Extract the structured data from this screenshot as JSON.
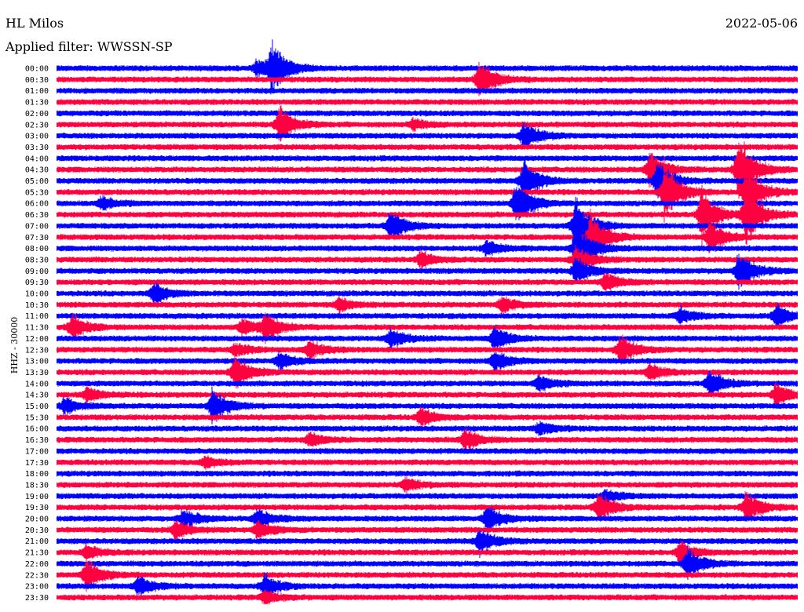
{
  "header": {
    "station": "HL Milos",
    "date": "2022-05-06",
    "filter": "Applied filter: WWSSN-SP"
  },
  "chart_data": {
    "type": "line",
    "title": "",
    "ylabel": "HHZ - 30000",
    "colors": [
      "#0000ff",
      "#ff0040"
    ],
    "rows": [
      "00:00",
      "00:30",
      "01:00",
      "01:30",
      "02:00",
      "02:30",
      "03:00",
      "03:30",
      "04:00",
      "04:30",
      "05:00",
      "05:30",
      "06:00",
      "06:30",
      "07:00",
      "07:30",
      "08:00",
      "08:30",
      "09:00",
      "09:30",
      "10:00",
      "10:30",
      "11:00",
      "11:30",
      "12:00",
      "12:30",
      "13:00",
      "13:30",
      "14:00",
      "14:30",
      "15:00",
      "15:30",
      "16:00",
      "16:30",
      "17:00",
      "17:30",
      "18:00",
      "18:30",
      "19:00",
      "19:30",
      "20:00",
      "20:30",
      "21:00",
      "21:30",
      "22:00",
      "22:30",
      "23:00",
      "23:30"
    ],
    "events": [
      {
        "row": 0,
        "pos": 0.29,
        "amp": 38
      },
      {
        "row": 0,
        "pos": 0.27,
        "amp": 14
      },
      {
        "row": 1,
        "pos": 0.57,
        "amp": 30
      },
      {
        "row": 5,
        "pos": 0.3,
        "amp": 26
      },
      {
        "row": 5,
        "pos": 0.48,
        "amp": 8
      },
      {
        "row": 6,
        "pos": 0.63,
        "amp": 22
      },
      {
        "row": 9,
        "pos": 0.8,
        "amp": 28
      },
      {
        "row": 9,
        "pos": 0.92,
        "amp": 55
      },
      {
        "row": 10,
        "pos": 0.63,
        "amp": 34
      },
      {
        "row": 10,
        "pos": 0.81,
        "amp": 30
      },
      {
        "row": 11,
        "pos": 0.82,
        "amp": 44
      },
      {
        "row": 11,
        "pos": 0.93,
        "amp": 40
      },
      {
        "row": 12,
        "pos": 0.62,
        "amp": 36
      },
      {
        "row": 12,
        "pos": 0.06,
        "amp": 10
      },
      {
        "row": 13,
        "pos": 0.87,
        "amp": 42
      },
      {
        "row": 13,
        "pos": 0.93,
        "amp": 45
      },
      {
        "row": 14,
        "pos": 0.45,
        "amp": 24
      },
      {
        "row": 14,
        "pos": 0.7,
        "amp": 44
      },
      {
        "row": 15,
        "pos": 0.72,
        "amp": 40
      },
      {
        "row": 15,
        "pos": 0.88,
        "amp": 26
      },
      {
        "row": 16,
        "pos": 0.7,
        "amp": 42
      },
      {
        "row": 16,
        "pos": 0.58,
        "amp": 12
      },
      {
        "row": 17,
        "pos": 0.7,
        "amp": 22
      },
      {
        "row": 17,
        "pos": 0.49,
        "amp": 12
      },
      {
        "row": 18,
        "pos": 0.7,
        "amp": 20
      },
      {
        "row": 18,
        "pos": 0.92,
        "amp": 30
      },
      {
        "row": 19,
        "pos": 0.74,
        "amp": 14
      },
      {
        "row": 20,
        "pos": 0.13,
        "amp": 16
      },
      {
        "row": 21,
        "pos": 0.6,
        "amp": 12
      },
      {
        "row": 21,
        "pos": 0.38,
        "amp": 10
      },
      {
        "row": 22,
        "pos": 0.97,
        "amp": 18
      },
      {
        "row": 22,
        "pos": 0.84,
        "amp": 12
      },
      {
        "row": 23,
        "pos": 0.02,
        "amp": 18
      },
      {
        "row": 23,
        "pos": 0.28,
        "amp": 22
      },
      {
        "row": 23,
        "pos": 0.25,
        "amp": 12
      },
      {
        "row": 24,
        "pos": 0.45,
        "amp": 14
      },
      {
        "row": 24,
        "pos": 0.59,
        "amp": 18
      },
      {
        "row": 25,
        "pos": 0.76,
        "amp": 22
      },
      {
        "row": 25,
        "pos": 0.34,
        "amp": 14
      },
      {
        "row": 25,
        "pos": 0.24,
        "amp": 10
      },
      {
        "row": 26,
        "pos": 0.3,
        "amp": 12
      },
      {
        "row": 26,
        "pos": 0.59,
        "amp": 16
      },
      {
        "row": 27,
        "pos": 0.24,
        "amp": 24
      },
      {
        "row": 27,
        "pos": 0.8,
        "amp": 12
      },
      {
        "row": 28,
        "pos": 0.88,
        "amp": 20
      },
      {
        "row": 28,
        "pos": 0.65,
        "amp": 12
      },
      {
        "row": 29,
        "pos": 0.04,
        "amp": 10
      },
      {
        "row": 29,
        "pos": 0.97,
        "amp": 16
      },
      {
        "row": 30,
        "pos": 0.21,
        "amp": 26
      },
      {
        "row": 30,
        "pos": 0.01,
        "amp": 12
      },
      {
        "row": 31,
        "pos": 0.49,
        "amp": 14
      },
      {
        "row": 32,
        "pos": 0.65,
        "amp": 10
      },
      {
        "row": 33,
        "pos": 0.55,
        "amp": 16
      },
      {
        "row": 33,
        "pos": 0.34,
        "amp": 10
      },
      {
        "row": 35,
        "pos": 0.2,
        "amp": 8
      },
      {
        "row": 37,
        "pos": 0.47,
        "amp": 10
      },
      {
        "row": 38,
        "pos": 0.74,
        "amp": 10
      },
      {
        "row": 39,
        "pos": 0.73,
        "amp": 22
      },
      {
        "row": 39,
        "pos": 0.93,
        "amp": 24
      },
      {
        "row": 40,
        "pos": 0.17,
        "amp": 14
      },
      {
        "row": 40,
        "pos": 0.27,
        "amp": 16
      },
      {
        "row": 40,
        "pos": 0.58,
        "amp": 20
      },
      {
        "row": 41,
        "pos": 0.16,
        "amp": 14
      },
      {
        "row": 41,
        "pos": 0.27,
        "amp": 14
      },
      {
        "row": 42,
        "pos": 0.57,
        "amp": 20
      },
      {
        "row": 43,
        "pos": 0.84,
        "amp": 16
      },
      {
        "row": 43,
        "pos": 0.04,
        "amp": 10
      },
      {
        "row": 44,
        "pos": 0.85,
        "amp": 26
      },
      {
        "row": 45,
        "pos": 0.04,
        "amp": 22
      },
      {
        "row": 46,
        "pos": 0.11,
        "amp": 16
      },
      {
        "row": 46,
        "pos": 0.28,
        "amp": 18
      },
      {
        "row": 47,
        "pos": 0.28,
        "amp": 10
      }
    ]
  }
}
